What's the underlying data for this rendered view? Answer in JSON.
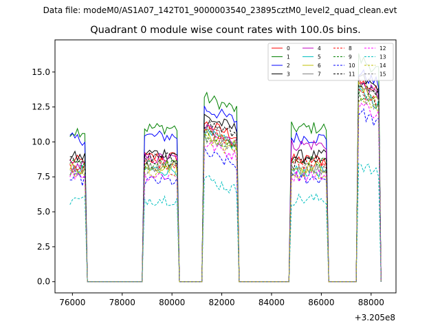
{
  "figure": {
    "suptitle": "Data file: modeM0/AS1A07_142T01_9000003540_23895cztM0_level2_quad_clean.evt",
    "title": "Quadrant 0 module wise count rates with 100.0s bins."
  },
  "chart_data": {
    "type": "line",
    "title": "Quadrant 0 module wise count rates with 100.0s bins.",
    "xlabel": "",
    "ylabel": "",
    "x_offset_label": "+3.205e8",
    "xlim": [
      75300,
      89000
    ],
    "ylim": [
      -0.8,
      17.3
    ],
    "xticks": [
      76000,
      78000,
      80000,
      82000,
      84000,
      86000,
      88000
    ],
    "yticks": [
      0.0,
      2.5,
      5.0,
      7.5,
      10.0,
      12.5,
      15.0
    ],
    "xtick_labels": [
      "76000",
      "78000",
      "80000",
      "82000",
      "84000",
      "86000",
      "88000"
    ],
    "ytick_labels": [
      "0.0",
      "2.5",
      "5.0",
      "7.5",
      "10.0",
      "12.5",
      "15.0"
    ],
    "legend_position": "top-right",
    "segments": [
      {
        "start": 75900,
        "end": 76500
      },
      {
        "start": 78900,
        "end": 80200
      },
      {
        "start": 81300,
        "end": 82600
      },
      {
        "start": 84800,
        "end": 86200
      },
      {
        "start": 87500,
        "end": 88300
      }
    ],
    "zero_floor": 0.0,
    "series": [
      {
        "name": "0",
        "color": "#ff0000",
        "dash": "solid",
        "levels": [
          8.6,
          8.9,
          11.3,
          8.7,
          14.4
        ]
      },
      {
        "name": "1",
        "color": "#008000",
        "dash": "solid",
        "levels": [
          10.8,
          11.0,
          13.2,
          11.0,
          16.0
        ]
      },
      {
        "name": "2",
        "color": "#0000ff",
        "dash": "solid",
        "levels": [
          10.2,
          10.4,
          12.4,
          10.3,
          15.0
        ]
      },
      {
        "name": "3",
        "color": "#000000",
        "dash": "solid",
        "levels": [
          8.9,
          9.2,
          11.8,
          9.0,
          14.7
        ]
      },
      {
        "name": "4",
        "color": "#bf00bf",
        "dash": "solid",
        "levels": [
          8.3,
          8.8,
          11.0,
          9.8,
          14.2
        ]
      },
      {
        "name": "5",
        "color": "#00bfbf",
        "dash": "solid",
        "levels": [
          7.9,
          8.0,
          10.6,
          7.9,
          13.6
        ]
      },
      {
        "name": "6",
        "color": "#bfbf00",
        "dash": "solid",
        "levels": [
          8.1,
          8.3,
          10.7,
          8.2,
          13.9
        ]
      },
      {
        "name": "7",
        "color": "#808080",
        "dash": "solid",
        "levels": [
          8.0,
          8.2,
          10.8,
          8.0,
          14.0
        ]
      },
      {
        "name": "8",
        "color": "#ff0000",
        "dash": "dashed",
        "levels": [
          8.2,
          8.5,
          10.9,
          8.4,
          13.7
        ]
      },
      {
        "name": "9",
        "color": "#008000",
        "dash": "dashed",
        "levels": [
          8.4,
          8.4,
          10.5,
          8.6,
          13.5
        ]
      },
      {
        "name": "10",
        "color": "#0000ff",
        "dash": "dashed",
        "levels": [
          7.3,
          7.2,
          9.2,
          7.4,
          12.2
        ]
      },
      {
        "name": "11",
        "color": "#000000",
        "dash": "dashed",
        "levels": [
          8.7,
          8.8,
          11.4,
          8.5,
          14.5
        ]
      },
      {
        "name": "12",
        "color": "#ff00ff",
        "dash": "dashed",
        "levels": [
          7.7,
          7.6,
          9.9,
          7.6,
          12.8
        ]
      },
      {
        "name": "13",
        "color": "#00bfbf",
        "dash": "dashed",
        "levels": [
          5.8,
          5.9,
          7.4,
          5.9,
          8.5
        ]
      },
      {
        "name": "14",
        "color": "#bfbf00",
        "dash": "dashed",
        "levels": [
          7.8,
          7.9,
          10.2,
          7.8,
          13.2
        ]
      },
      {
        "name": "15",
        "color": "#808080",
        "dash": "dashed",
        "levels": [
          8.0,
          8.1,
          10.4,
          8.1,
          13.4
        ]
      }
    ]
  }
}
